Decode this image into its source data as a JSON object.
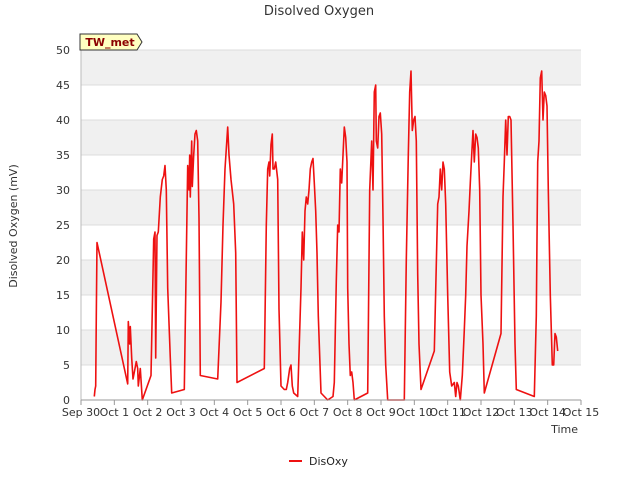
{
  "chart_data": {
    "type": "line",
    "title": "Disolved Oxygen",
    "xlabel": "Time",
    "ylabel": "Disolved Oxygen (mV)",
    "ylim": [
      0,
      50
    ],
    "yticks": [
      0,
      5,
      10,
      15,
      20,
      25,
      30,
      35,
      40,
      45,
      50
    ],
    "xlim": [
      0,
      15
    ],
    "xticks": [
      {
        "value": 0,
        "label": "Sep 30"
      },
      {
        "value": 1,
        "label": "Oct 1"
      },
      {
        "value": 2,
        "label": "Oct 2"
      },
      {
        "value": 3,
        "label": "Oct 3"
      },
      {
        "value": 4,
        "label": "Oct 4"
      },
      {
        "value": 5,
        "label": "Oct 5"
      },
      {
        "value": 6,
        "label": "Oct 6"
      },
      {
        "value": 7,
        "label": "Oct 7"
      },
      {
        "value": 8,
        "label": "Oct 8"
      },
      {
        "value": 9,
        "label": "Oct 9"
      },
      {
        "value": 10,
        "label": "Oct 10"
      },
      {
        "value": 11,
        "label": "Oct 11"
      },
      {
        "value": 12,
        "label": "Oct 12"
      },
      {
        "value": 13,
        "label": "Oct 13"
      },
      {
        "value": 14,
        "label": "Oct 14"
      },
      {
        "value": 15,
        "label": "Oct 15"
      }
    ],
    "grid": true,
    "background_bands": true,
    "station_label": "TW_met",
    "series": [
      {
        "name": "DisOxy",
        "color": "#ee1111",
        "points": [
          [
            0.4,
            0.5
          ],
          [
            0.42,
            1.5
          ],
          [
            0.44,
            2.0
          ],
          [
            0.46,
            12.0
          ],
          [
            0.48,
            22.5
          ],
          [
            1.4,
            2.3
          ],
          [
            1.42,
            11.2
          ],
          [
            1.46,
            8.0
          ],
          [
            1.48,
            10.5
          ],
          [
            1.52,
            6.0
          ],
          [
            1.56,
            3.0
          ],
          [
            1.62,
            4.5
          ],
          [
            1.66,
            5.5
          ],
          [
            1.7,
            4.5
          ],
          [
            1.72,
            2.0
          ],
          [
            1.78,
            4.5
          ],
          [
            1.84,
            0.0
          ],
          [
            2.1,
            3.5
          ],
          [
            2.18,
            23.0
          ],
          [
            2.22,
            24.0
          ],
          [
            2.24,
            6.0
          ],
          [
            2.28,
            23.5
          ],
          [
            2.32,
            24.0
          ],
          [
            2.38,
            29.0
          ],
          [
            2.44,
            31.5
          ],
          [
            2.48,
            32.0
          ],
          [
            2.52,
            33.5
          ],
          [
            2.56,
            30.0
          ],
          [
            2.6,
            16.0
          ],
          [
            2.68,
            6.0
          ],
          [
            2.72,
            1.0
          ],
          [
            3.1,
            1.5
          ],
          [
            3.2,
            33.5
          ],
          [
            3.24,
            30.0
          ],
          [
            3.26,
            35.0
          ],
          [
            3.28,
            29.0
          ],
          [
            3.32,
            37.0
          ],
          [
            3.34,
            30.5
          ],
          [
            3.38,
            35.0
          ],
          [
            3.42,
            38.0
          ],
          [
            3.46,
            38.5
          ],
          [
            3.5,
            37.0
          ],
          [
            3.54,
            26.0
          ],
          [
            3.58,
            3.5
          ],
          [
            4.1,
            3.0
          ],
          [
            4.2,
            14.0
          ],
          [
            4.26,
            25.0
          ],
          [
            4.32,
            33.0
          ],
          [
            4.4,
            39.0
          ],
          [
            4.44,
            35.0
          ],
          [
            4.5,
            31.5
          ],
          [
            4.58,
            28.0
          ],
          [
            4.64,
            21.0
          ],
          [
            4.68,
            2.5
          ],
          [
            5.5,
            4.5
          ],
          [
            5.56,
            25.0
          ],
          [
            5.6,
            33.0
          ],
          [
            5.64,
            34.0
          ],
          [
            5.66,
            32.0
          ],
          [
            5.7,
            36.5
          ],
          [
            5.74,
            38.0
          ],
          [
            5.76,
            33.0
          ],
          [
            5.8,
            33.0
          ],
          [
            5.84,
            34.0
          ],
          [
            5.9,
            31.5
          ],
          [
            5.94,
            13.0
          ],
          [
            6.0,
            2.0
          ],
          [
            6.1,
            1.5
          ],
          [
            6.16,
            1.5
          ],
          [
            6.2,
            2.5
          ],
          [
            6.26,
            4.5
          ],
          [
            6.3,
            5.0
          ],
          [
            6.34,
            2.0
          ],
          [
            6.38,
            1.0
          ],
          [
            6.5,
            0.5
          ],
          [
            6.6,
            16.0
          ],
          [
            6.64,
            24.0
          ],
          [
            6.68,
            20.0
          ],
          [
            6.72,
            27.0
          ],
          [
            6.76,
            29.0
          ],
          [
            6.8,
            28.0
          ],
          [
            6.84,
            30.0
          ],
          [
            6.88,
            33.0
          ],
          [
            6.92,
            34.0
          ],
          [
            6.96,
            34.5
          ],
          [
            7.0,
            31.0
          ],
          [
            7.04,
            27.0
          ],
          [
            7.08,
            21.0
          ],
          [
            7.12,
            12.0
          ],
          [
            7.2,
            1.0
          ],
          [
            7.4,
            0.0
          ],
          [
            7.56,
            0.5
          ],
          [
            7.6,
            2.5
          ],
          [
            7.66,
            17.0
          ],
          [
            7.7,
            25.0
          ],
          [
            7.74,
            24.0
          ],
          [
            7.78,
            33.0
          ],
          [
            7.82,
            31.0
          ],
          [
            7.86,
            35.0
          ],
          [
            7.9,
            39.0
          ],
          [
            7.94,
            37.5
          ],
          [
            7.98,
            34.0
          ],
          [
            8.0,
            16.0
          ],
          [
            8.04,
            8.0
          ],
          [
            8.08,
            3.5
          ],
          [
            8.12,
            4.0
          ],
          [
            8.16,
            2.5
          ],
          [
            8.2,
            0.0
          ],
          [
            8.6,
            1.0
          ],
          [
            8.66,
            30.0
          ],
          [
            8.72,
            37.0
          ],
          [
            8.76,
            30.0
          ],
          [
            8.8,
            44.0
          ],
          [
            8.84,
            45.0
          ],
          [
            8.86,
            37.0
          ],
          [
            8.9,
            36.0
          ],
          [
            8.94,
            40.5
          ],
          [
            8.98,
            41.0
          ],
          [
            9.02,
            38.0
          ],
          [
            9.06,
            26.0
          ],
          [
            9.1,
            12.0
          ],
          [
            9.14,
            5.0
          ],
          [
            9.2,
            0.0
          ],
          [
            9.7,
            0.0
          ],
          [
            9.76,
            20.0
          ],
          [
            9.82,
            35.0
          ],
          [
            9.86,
            44.0
          ],
          [
            9.9,
            47.0
          ],
          [
            9.94,
            38.5
          ],
          [
            9.98,
            40.0
          ],
          [
            10.02,
            40.5
          ],
          [
            10.06,
            37.0
          ],
          [
            10.1,
            18.0
          ],
          [
            10.14,
            8.0
          ],
          [
            10.2,
            1.5
          ],
          [
            10.6,
            7.0
          ],
          [
            10.7,
            28.0
          ],
          [
            10.74,
            29.0
          ],
          [
            10.78,
            33.0
          ],
          [
            10.82,
            30.0
          ],
          [
            10.86,
            34.0
          ],
          [
            10.9,
            33.0
          ],
          [
            10.94,
            28.0
          ],
          [
            11.0,
            15.0
          ],
          [
            11.06,
            4.0
          ],
          [
            11.12,
            2.0
          ],
          [
            11.2,
            2.5
          ],
          [
            11.24,
            0.5
          ],
          [
            11.28,
            2.5
          ],
          [
            11.32,
            2.0
          ],
          [
            11.38,
            0.0
          ],
          [
            11.44,
            3.5
          ],
          [
            11.5,
            10.0
          ],
          [
            11.54,
            15.0
          ],
          [
            11.58,
            22.0
          ],
          [
            11.64,
            27.0
          ],
          [
            11.68,
            31.0
          ],
          [
            11.72,
            35.0
          ],
          [
            11.76,
            38.5
          ],
          [
            11.8,
            34.0
          ],
          [
            11.84,
            38.0
          ],
          [
            11.88,
            37.5
          ],
          [
            11.92,
            36.0
          ],
          [
            11.96,
            30.0
          ],
          [
            12.0,
            15.0
          ],
          [
            12.06,
            8.0
          ],
          [
            12.1,
            1.0
          ],
          [
            12.6,
            9.5
          ],
          [
            12.66,
            29.0
          ],
          [
            12.7,
            34.0
          ],
          [
            12.74,
            40.0
          ],
          [
            12.78,
            35.0
          ],
          [
            12.82,
            40.5
          ],
          [
            12.86,
            40.5
          ],
          [
            12.9,
            40.0
          ],
          [
            12.96,
            25.0
          ],
          [
            13.02,
            8.0
          ],
          [
            13.06,
            1.5
          ],
          [
            13.6,
            0.5
          ],
          [
            13.66,
            12.0
          ],
          [
            13.7,
            34.0
          ],
          [
            13.74,
            37.0
          ],
          [
            13.78,
            46.0
          ],
          [
            13.82,
            47.0
          ],
          [
            13.86,
            40.0
          ],
          [
            13.9,
            44.0
          ],
          [
            13.94,
            43.5
          ],
          [
            13.98,
            42.0
          ],
          [
            14.02,
            30.0
          ],
          [
            14.08,
            15.0
          ],
          [
            14.14,
            5.0
          ],
          [
            14.18,
            5.0
          ],
          [
            14.22,
            9.5
          ],
          [
            14.26,
            9.0
          ],
          [
            14.3,
            7.0
          ]
        ]
      }
    ],
    "legend": {
      "position": "bottom-center",
      "entries": [
        "DisOxy"
      ]
    }
  }
}
